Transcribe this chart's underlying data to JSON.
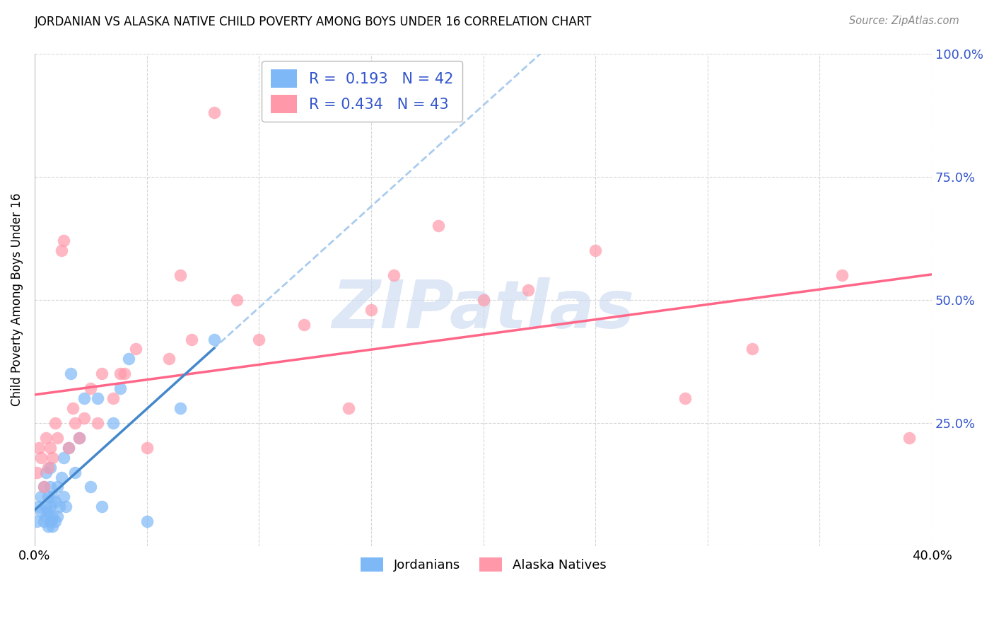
{
  "title": "JORDANIAN VS ALASKA NATIVE CHILD POVERTY AMONG BOYS UNDER 16 CORRELATION CHART",
  "source": "Source: ZipAtlas.com",
  "ylabel": "Child Poverty Among Boys Under 16",
  "xlim": [
    0.0,
    0.4
  ],
  "ylim": [
    0.0,
    1.0
  ],
  "xticks": [
    0.0,
    0.05,
    0.1,
    0.15,
    0.2,
    0.25,
    0.3,
    0.35,
    0.4
  ],
  "yticks": [
    0.0,
    0.25,
    0.5,
    0.75,
    1.0
  ],
  "ytick_labels_right": [
    "",
    "25.0%",
    "50.0%",
    "75.0%",
    "100.0%"
  ],
  "jordanians_x": [
    0.001,
    0.002,
    0.003,
    0.003,
    0.004,
    0.004,
    0.005,
    0.005,
    0.005,
    0.006,
    0.006,
    0.006,
    0.007,
    0.007,
    0.007,
    0.007,
    0.008,
    0.008,
    0.008,
    0.009,
    0.009,
    0.01,
    0.01,
    0.011,
    0.012,
    0.013,
    0.013,
    0.014,
    0.015,
    0.016,
    0.018,
    0.02,
    0.022,
    0.025,
    0.028,
    0.03,
    0.035,
    0.038,
    0.042,
    0.05,
    0.065,
    0.08
  ],
  "jordanians_y": [
    0.05,
    0.08,
    0.07,
    0.1,
    0.05,
    0.12,
    0.06,
    0.08,
    0.15,
    0.04,
    0.07,
    0.1,
    0.05,
    0.08,
    0.12,
    0.16,
    0.04,
    0.06,
    0.1,
    0.05,
    0.09,
    0.06,
    0.12,
    0.08,
    0.14,
    0.1,
    0.18,
    0.08,
    0.2,
    0.35,
    0.15,
    0.22,
    0.3,
    0.12,
    0.3,
    0.08,
    0.25,
    0.32,
    0.38,
    0.05,
    0.28,
    0.42
  ],
  "alaska_x": [
    0.001,
    0.002,
    0.003,
    0.004,
    0.005,
    0.006,
    0.007,
    0.008,
    0.009,
    0.01,
    0.012,
    0.013,
    0.015,
    0.017,
    0.018,
    0.02,
    0.022,
    0.025,
    0.028,
    0.03,
    0.035,
    0.038,
    0.04,
    0.045,
    0.05,
    0.06,
    0.065,
    0.07,
    0.08,
    0.09,
    0.1,
    0.12,
    0.14,
    0.15,
    0.16,
    0.18,
    0.2,
    0.22,
    0.25,
    0.29,
    0.32,
    0.36,
    0.39
  ],
  "alaska_y": [
    0.15,
    0.2,
    0.18,
    0.12,
    0.22,
    0.16,
    0.2,
    0.18,
    0.25,
    0.22,
    0.6,
    0.62,
    0.2,
    0.28,
    0.25,
    0.22,
    0.26,
    0.32,
    0.25,
    0.35,
    0.3,
    0.35,
    0.35,
    0.4,
    0.2,
    0.38,
    0.55,
    0.42,
    0.88,
    0.5,
    0.42,
    0.45,
    0.28,
    0.48,
    0.55,
    0.65,
    0.5,
    0.52,
    0.6,
    0.3,
    0.4,
    0.55,
    0.22
  ],
  "jordanians_color": "#7EB8F7",
  "alaska_color": "#FF99AA",
  "jordanians_line_color": "#4488CC",
  "alaska_line_color": "#FF6688",
  "dashed_line_color": "#AACCEE",
  "jordanians_R": 0.193,
  "jordanians_N": 42,
  "alaska_R": 0.434,
  "alaska_N": 43,
  "watermark": "ZIPatlas",
  "watermark_color": "#C8D8F0",
  "legend_label_color": "#3355CC",
  "background_color": "#FFFFFF",
  "grid_color": "#CCCCCC"
}
